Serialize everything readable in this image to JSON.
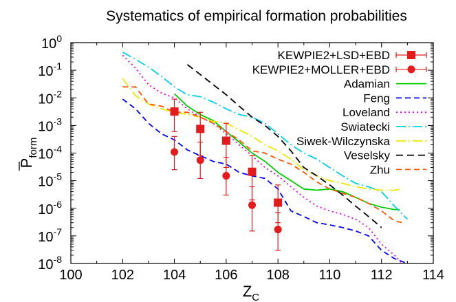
{
  "chart_data": {
    "type": "line",
    "title": "Systematics of empirical formation probabilities",
    "xlabel": "Z",
    "xlabel_sub": "C",
    "ylabel": "P",
    "ylabel_sub": "form",
    "xlim": [
      100,
      114
    ],
    "ylim_log10": [
      -8,
      0
    ],
    "yscale": "log",
    "x_ticks": [
      {
        "value": 100,
        "label": "100"
      },
      {
        "value": 102,
        "label": "102"
      },
      {
        "value": 104,
        "label": "104"
      },
      {
        "value": 106,
        "label": "106"
      },
      {
        "value": 108,
        "label": "108"
      },
      {
        "value": 110,
        "label": "110"
      },
      {
        "value": 112,
        "label": "112"
      },
      {
        "value": 114,
        "label": "114"
      }
    ],
    "y_ticks": [
      {
        "value": 0,
        "base": "10",
        "exp": "0"
      },
      {
        "value": -1,
        "base": "10",
        "exp": "-1"
      },
      {
        "value": -2,
        "base": "10",
        "exp": "-2"
      },
      {
        "value": -3,
        "base": "10",
        "exp": "-3"
      },
      {
        "value": -4,
        "base": "10",
        "exp": "-4"
      },
      {
        "value": -5,
        "base": "10",
        "exp": "-5"
      },
      {
        "value": -6,
        "base": "10",
        "exp": "-6"
      },
      {
        "value": -7,
        "base": "10",
        "exp": "-7"
      },
      {
        "value": -8,
        "base": "10",
        "exp": "-8"
      }
    ],
    "legend_position": "top-right",
    "points": [
      {
        "name": "KEWPIE2+LSD+EBD",
        "marker": "square",
        "color": "#e41a1c",
        "data": [
          {
            "x": 104,
            "y": 0.0032,
            "lo": 0.0006,
            "hi": 0.009
          },
          {
            "x": 105,
            "y": 0.00075,
            "lo": 8e-05,
            "hi": 0.003
          },
          {
            "x": 106,
            "y": 0.00028,
            "lo": 3e-05,
            "hi": 0.0012
          },
          {
            "x": 107,
            "y": 2.1e-05,
            "lo": 2e-06,
            "hi": 8e-05
          },
          {
            "x": 108,
            "y": 1.6e-06,
            "lo": 3e-07,
            "hi": 7e-06
          }
        ]
      },
      {
        "name": "KEWPIE2+MOLLER+EBD",
        "marker": "circle",
        "color": "#e41a1c",
        "data": [
          {
            "x": 104,
            "y": 0.00011,
            "lo": 2.5e-05,
            "hi": 0.0004
          },
          {
            "x": 105,
            "y": 5.5e-05,
            "lo": 1.2e-05,
            "hi": 0.00025
          },
          {
            "x": 106,
            "y": 1.5e-05,
            "lo": 3e-06,
            "hi": 7e-05
          },
          {
            "x": 107,
            "y": 1.3e-06,
            "lo": 1.5e-07,
            "hi": 6e-06
          },
          {
            "x": 108,
            "y": 1.7e-07,
            "lo": 3e-08,
            "hi": 7e-07
          }
        ]
      }
    ],
    "series": [
      {
        "name": "Adamian",
        "color": "#00cc00",
        "dash": "solid",
        "x": [
          104,
          104.5,
          105,
          105.5,
          106,
          106.5,
          107,
          107.5,
          108,
          108.5,
          109,
          109.5,
          110,
          110.5,
          111,
          111.5,
          112,
          112.5,
          112.7
        ],
        "y": [
          0.014,
          0.005,
          0.0025,
          0.0015,
          0.0006,
          0.00025,
          0.0001,
          5e-05,
          2e-05,
          1e-05,
          5e-06,
          4.5e-06,
          5e-06,
          4e-06,
          2.5e-06,
          1.5e-06,
          1.1e-06,
          9e-07,
          9e-07
        ]
      },
      {
        "name": "Feng",
        "color": "#0000ff",
        "dash": "8,5",
        "x": [
          102,
          102.5,
          103,
          103.5,
          104,
          104.5,
          105,
          105.5,
          106,
          106.5,
          107,
          107.5,
          108,
          108.5,
          109,
          109.5,
          110,
          110.5,
          111,
          111.5,
          112,
          112.5,
          113
        ],
        "y": [
          0.009,
          0.004,
          0.0012,
          0.0005,
          0.0003,
          0.00013,
          8e-05,
          5e-05,
          4e-05,
          2e-05,
          1.5e-05,
          1.2e-05,
          5e-06,
          8e-07,
          5e-07,
          3e-07,
          2.5e-07,
          2e-07,
          1.5e-07,
          1e-07,
          3e-08,
          1.5e-08,
          1e-08
        ]
      },
      {
        "name": "Loveland",
        "color": "#e100e1",
        "dash": "2,4",
        "x": [
          102,
          102.5,
          103,
          103.5,
          104,
          104.5,
          105,
          105.5,
          106,
          106.5,
          107,
          107.5,
          108,
          108.5,
          109,
          109.5,
          110,
          110.5,
          111,
          111.5,
          112,
          112.5,
          112.8
        ],
        "y": [
          0.35,
          0.12,
          0.03,
          0.015,
          0.01,
          0.004,
          0.002,
          0.0012,
          0.0005,
          0.0002,
          8e-05,
          3e-05,
          1.5e-05,
          6e-06,
          2.5e-06,
          1.2e-06,
          8e-07,
          6e-07,
          4e-07,
          2e-07,
          5e-08,
          2e-08,
          1e-08
        ]
      },
      {
        "name": "Swiatecki",
        "color": "#00d0e8",
        "dash": "14,4,2,4",
        "x": [
          102,
          102.5,
          103,
          103.5,
          104,
          104.5,
          105,
          105.5,
          106,
          106.5,
          107,
          107.5,
          108,
          108.5,
          109,
          109.5,
          110,
          110.5,
          111,
          111.5,
          112,
          112.5,
          113
        ],
        "y": [
          0.45,
          0.25,
          0.13,
          0.06,
          0.025,
          0.013,
          0.011,
          0.007,
          0.004,
          0.0025,
          0.002,
          0.0012,
          0.0005,
          0.0002,
          0.0001,
          6e-05,
          3e-05,
          1.5e-05,
          8e-06,
          6e-06,
          4e-06,
          1.2e-06,
          4e-07
        ]
      },
      {
        "name": "Siwek-Wilczynska",
        "color": "#e8e800",
        "dash": "14,4,2,4",
        "x": [
          102,
          102.5,
          103,
          103.5,
          104,
          104.5,
          105,
          105.5,
          106,
          106.5,
          107,
          107.5,
          108,
          108.5,
          109,
          109.5,
          110,
          110.5,
          111,
          111.5,
          112,
          112.5,
          112.8
        ],
        "y": [
          0.05,
          0.012,
          0.006,
          0.004,
          0.003,
          0.0025,
          0.002,
          0.0014,
          0.0012,
          0.0007,
          0.0004,
          0.0002,
          0.00012,
          6e-05,
          2.5e-05,
          1.5e-05,
          1e-05,
          8e-06,
          6e-06,
          5e-06,
          4.5e-06,
          4.5e-06,
          5e-06
        ]
      },
      {
        "name": "Veselsky",
        "color": "#000000",
        "dash": "10,6",
        "x": [
          104.5,
          105,
          105.5,
          106,
          106.5,
          107,
          107.5,
          108,
          108.5,
          109,
          109.5,
          110,
          110.5,
          111,
          111.5,
          112
        ],
        "y": [
          0.16,
          0.07,
          0.03,
          0.013,
          0.005,
          0.002,
          0.001,
          0.0004,
          0.00012,
          3e-05,
          1.5e-05,
          7e-06,
          3e-06,
          1.2e-06,
          5e-07,
          2e-07
        ]
      },
      {
        "name": "Zhu",
        "color": "#ff5500",
        "dash": "8,5",
        "x": [
          102,
          102.5,
          103,
          103.5,
          104,
          104.5,
          105,
          105.5,
          106,
          106.5,
          107,
          107.5,
          108,
          108.5,
          109,
          109.5,
          110,
          110.5,
          111,
          111.5,
          112,
          112.5,
          112.8
        ],
        "y": [
          0.025,
          0.025,
          0.006,
          0.005,
          0.003,
          0.003,
          0.002,
          0.0012,
          0.0006,
          0.0003,
          0.00012,
          0.0001,
          6e-05,
          4e-05,
          2e-05,
          9e-06,
          5e-06,
          3.5e-06,
          2.5e-06,
          1.5e-06,
          8e-07,
          3.5e-07,
          3e-07
        ]
      }
    ]
  }
}
